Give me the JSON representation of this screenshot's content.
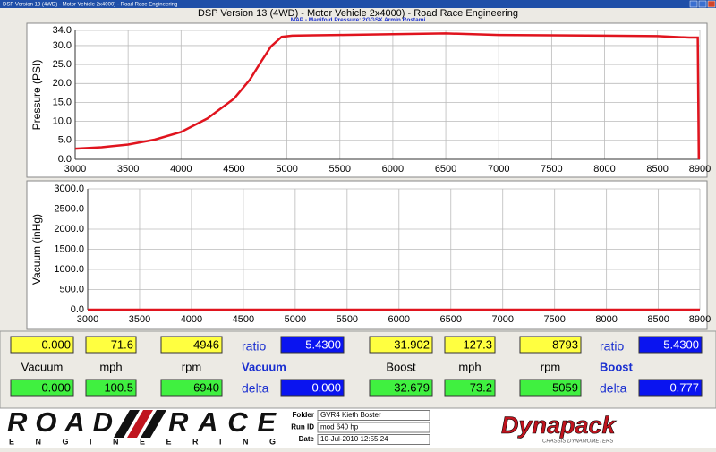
{
  "window_title": "DSP Version 13 (4WD) - Motor Vehicle 2x4000) - Road Race Engineering",
  "header": {
    "title": "DSP Version 13 (4WD) - Motor Vehicle 2x4000) - Road Race Engineering",
    "subtitle": "MAP - Manifold Pressure: 2GGSX Armin Rostami"
  },
  "chart_data": [
    {
      "type": "line",
      "y_label": "Pressure (PSI)",
      "color": "#e0141e",
      "grid": true,
      "x": [
        3000,
        3250,
        3500,
        3750,
        4000,
        4250,
        4500,
        4650,
        4750,
        4850,
        4950,
        5050,
        5250,
        5500,
        6000,
        6500,
        7000,
        7500,
        8000,
        8500,
        8800,
        8880,
        8890
      ],
      "values": [
        2.8,
        3.2,
        3.9,
        5.2,
        7.2,
        10.8,
        16,
        21,
        25.5,
        29.8,
        32.3,
        32.6,
        32.7,
        32.8,
        33,
        33.2,
        32.8,
        32.7,
        32.6,
        32.5,
        32.1,
        32.1,
        0
      ],
      "xlim": [
        3000,
        8900
      ],
      "xticks": [
        3000,
        3500,
        4000,
        4500,
        5000,
        5500,
        6000,
        6500,
        7000,
        7500,
        8000,
        8500,
        8900
      ],
      "ylim": [
        0,
        34
      ],
      "yticks": [
        {
          "value": 0,
          "label": "0.0"
        },
        {
          "value": 5,
          "label": "5.0"
        },
        {
          "value": 10,
          "label": "10.0"
        },
        {
          "value": 15,
          "label": "15.0"
        },
        {
          "value": 20,
          "label": "20.0"
        },
        {
          "value": 25,
          "label": "25.0"
        },
        {
          "value": 30,
          "label": "30.0"
        },
        {
          "value": 34,
          "label": "34.0"
        }
      ]
    },
    {
      "type": "line",
      "y_label": "Vacuum (inHg)",
      "color": "#e0141e",
      "grid": true,
      "x": [
        3000,
        8900
      ],
      "values": [
        0,
        0
      ],
      "xlim": [
        3000,
        8900
      ],
      "xticks": [
        3000,
        3500,
        4000,
        4500,
        5000,
        5500,
        6000,
        6500,
        7000,
        7500,
        8000,
        8500,
        8900
      ],
      "ylim": [
        0,
        3000
      ],
      "yticks": [
        {
          "value": 0,
          "label": "0.0"
        },
        {
          "value": 500,
          "label": "500.0"
        },
        {
          "value": 1000,
          "label": "1000.0"
        },
        {
          "value": 1500,
          "label": "1500.0"
        },
        {
          "value": 2000,
          "label": "2000.0"
        },
        {
          "value": 2500,
          "label": "2500.0"
        },
        {
          "value": 3000,
          "label": "3000.0"
        }
      ]
    }
  ],
  "readouts": [
    {
      "top": [
        "0.000",
        "71.6",
        "4946"
      ],
      "ratio_label": "ratio",
      "ratio": "5.4300",
      "labels": [
        "Vacuum",
        "mph",
        "rpm"
      ],
      "mode": "Vacuum",
      "bottom": [
        "0.000",
        "100.5",
        "6940"
      ],
      "delta_label": "delta",
      "delta": "0.000"
    },
    {
      "top": [
        "31.902",
        "127.3",
        "8793"
      ],
      "ratio_label": "ratio",
      "ratio": "5.4300",
      "labels": [
        "Boost",
        "mph",
        "rpm"
      ],
      "mode": "Boost",
      "bottom": [
        "32.679",
        "73.2",
        "5059"
      ],
      "delta_label": "delta",
      "delta": "0.777"
    }
  ],
  "logo": {
    "road": "ROAD",
    "race": "RACE",
    "sub": "E N G I N E E R I N G"
  },
  "run_info": [
    {
      "label": "Folder",
      "value": "GVR4 Kieth Boster"
    },
    {
      "label": "Run ID",
      "value": "mod 640 hp"
    },
    {
      "label": "Date",
      "value": "10-Jul-2010 12:55:24"
    }
  ],
  "dynapack": {
    "name": "Dynapack",
    "sub": "CHASSIS DYNAMOMETERS"
  }
}
